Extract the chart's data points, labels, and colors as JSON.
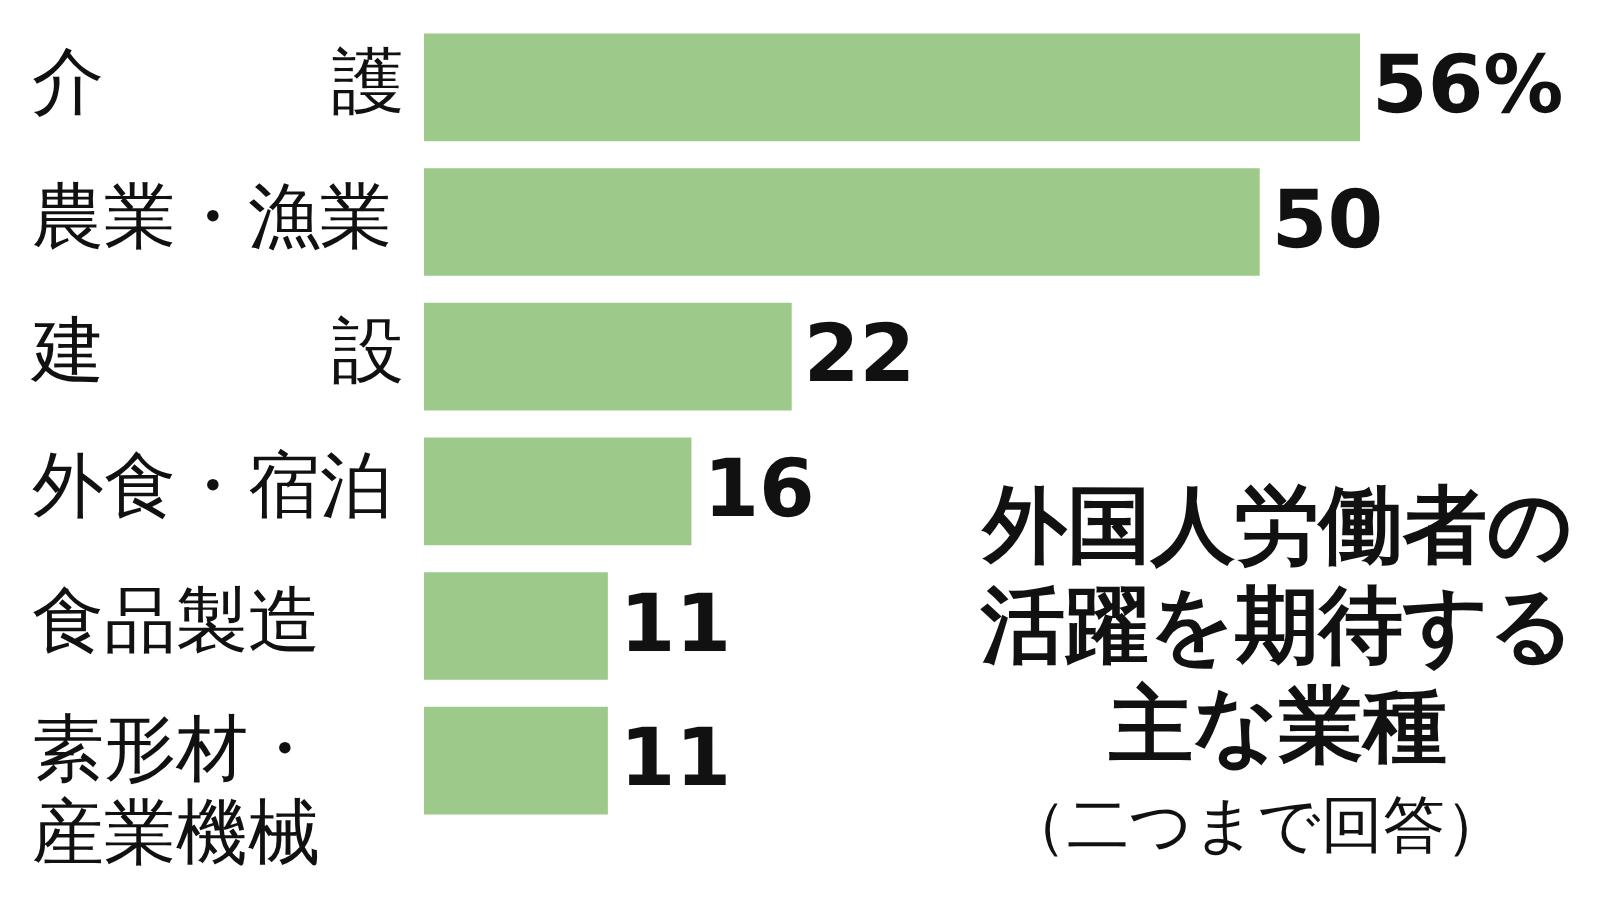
{
  "chart_data": {
    "type": "bar",
    "orientation": "horizontal",
    "title": "外国人労働者の活躍を期待する主な業種",
    "subtitle": "（二つまで回答）",
    "categories": [
      "介護",
      "農業・漁業",
      "建設",
      "外食・宿泊",
      "食品製造",
      "素形材・産業機械"
    ],
    "values": [
      56,
      50,
      22,
      16,
      11,
      11
    ],
    "value_labels": [
      "56%",
      "50",
      "22",
      "16",
      "11",
      "11"
    ],
    "color": "#9dc98b",
    "legend": false
  }
}
